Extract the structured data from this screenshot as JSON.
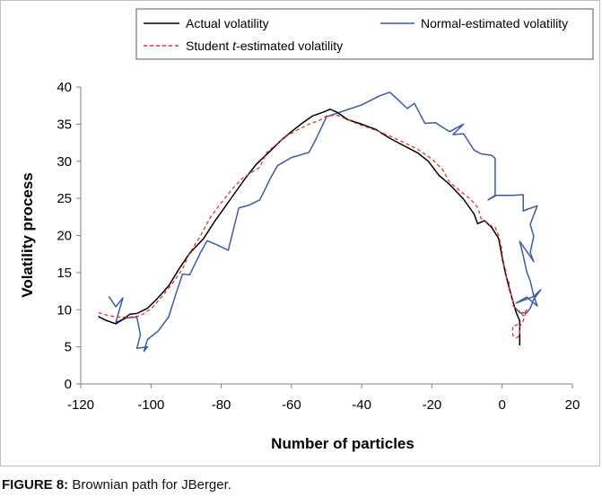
{
  "caption": {
    "label": "FIGURE 8:",
    "text": " Brownian path for JBerger."
  },
  "chart_data": {
    "type": "line",
    "title": "",
    "xlabel": "Number of particles",
    "ylabel": "Volatility process",
    "xlim": [
      -120,
      20
    ],
    "ylim": [
      0,
      40
    ],
    "x_ticks": [
      -120,
      -100,
      -80,
      -60,
      -40,
      -20,
      0,
      20
    ],
    "y_ticks": [
      0,
      5,
      10,
      15,
      20,
      25,
      30,
      35,
      40
    ],
    "grid": false,
    "legend_position": "top",
    "legend": {
      "actual": "Actual volatility",
      "normal": "Normal-estimated volatility",
      "student_pre": "Student ",
      "student_t": "t",
      "student_post": "-estimated volatility"
    },
    "series": [
      {
        "name": "Actual volatility",
        "color": "#000000",
        "style": "solid",
        "points": [
          [
            -115,
            9.1
          ],
          [
            -113,
            8.6
          ],
          [
            -110,
            8.1
          ],
          [
            -108,
            8.7
          ],
          [
            -106,
            9.4
          ],
          [
            -104,
            9.5
          ],
          [
            -101,
            10.2
          ],
          [
            -98,
            11.6
          ],
          [
            -95,
            13.2
          ],
          [
            -92,
            15.5
          ],
          [
            -89,
            17.6
          ],
          [
            -85,
            19.6
          ],
          [
            -82,
            21.8
          ],
          [
            -79,
            23.8
          ],
          [
            -76,
            25.8
          ],
          [
            -73,
            27.8
          ],
          [
            -70,
            29.6
          ],
          [
            -66,
            31.4
          ],
          [
            -63,
            32.8
          ],
          [
            -60,
            34.0
          ],
          [
            -57,
            35.1
          ],
          [
            -54,
            36.1
          ],
          [
            -51,
            36.6
          ],
          [
            -49,
            37.0
          ],
          [
            -47,
            36.6
          ],
          [
            -44,
            35.6
          ],
          [
            -40,
            35.0
          ],
          [
            -36,
            34.3
          ],
          [
            -32,
            33.1
          ],
          [
            -28,
            32.1
          ],
          [
            -24,
            31.1
          ],
          [
            -21,
            30.0
          ],
          [
            -18,
            28.1
          ],
          [
            -15,
            26.9
          ],
          [
            -11,
            24.9
          ],
          [
            -8,
            22.9
          ],
          [
            -7,
            21.6
          ],
          [
            -5,
            22.0
          ],
          [
            -3,
            21.1
          ],
          [
            -1,
            19.6
          ],
          [
            0,
            17.1
          ],
          [
            1,
            14.8
          ],
          [
            2,
            13.0
          ],
          [
            3,
            11.2
          ],
          [
            4,
            9.6
          ],
          [
            5,
            8.5
          ],
          [
            5,
            6.8
          ],
          [
            5,
            5.2
          ]
        ]
      },
      {
        "name": "Normal-estimated volatility",
        "color": "#3b5ba5",
        "style": "solid",
        "points": [
          [
            -112,
            11.8
          ],
          [
            -110,
            10.4
          ],
          [
            -108,
            11.6
          ],
          [
            -110,
            8.3
          ],
          [
            -107,
            8.9
          ],
          [
            -104,
            9.0
          ],
          [
            -103,
            6.6
          ],
          [
            -104,
            4.8
          ],
          [
            -101,
            5.0
          ],
          [
            -102,
            4.4
          ],
          [
            -101,
            6.0
          ],
          [
            -98,
            7.1
          ],
          [
            -95,
            9.0
          ],
          [
            -93,
            12.0
          ],
          [
            -91,
            14.8
          ],
          [
            -89,
            14.7
          ],
          [
            -86,
            17.6
          ],
          [
            -84,
            19.3
          ],
          [
            -81,
            18.7
          ],
          [
            -78,
            18.0
          ],
          [
            -75,
            23.7
          ],
          [
            -72,
            24.1
          ],
          [
            -69,
            24.8
          ],
          [
            -66,
            27.7
          ],
          [
            -64,
            29.4
          ],
          [
            -60,
            30.5
          ],
          [
            -55,
            31.2
          ],
          [
            -53,
            33.0
          ],
          [
            -50,
            36.0
          ],
          [
            -45,
            36.8
          ],
          [
            -40,
            37.6
          ],
          [
            -35,
            38.8
          ],
          [
            -32,
            39.3
          ],
          [
            -29,
            38.0
          ],
          [
            -27,
            37.1
          ],
          [
            -25,
            37.8
          ],
          [
            -22,
            35.1
          ],
          [
            -19,
            35.2
          ],
          [
            -15,
            34.0
          ],
          [
            -11,
            35.0
          ],
          [
            -14,
            33.6
          ],
          [
            -11,
            33.7
          ],
          [
            -8,
            31.5
          ],
          [
            -6,
            31.0
          ],
          [
            -3,
            30.8
          ],
          [
            -2,
            30.4
          ],
          [
            -2,
            27.2
          ],
          [
            -2,
            25.3
          ],
          [
            -4,
            24.8
          ],
          [
            -2,
            25.4
          ],
          [
            1,
            25.4
          ],
          [
            3,
            25.4
          ],
          [
            6,
            25.5
          ],
          [
            6,
            23.3
          ],
          [
            7,
            23.5
          ],
          [
            10,
            24.0
          ],
          [
            8,
            21.5
          ],
          [
            9,
            19.9
          ],
          [
            8,
            17.7
          ],
          [
            9,
            16.5
          ],
          [
            5,
            19.2
          ],
          [
            6,
            17.3
          ],
          [
            7,
            15.1
          ],
          [
            8,
            13.9
          ],
          [
            9,
            11.9
          ],
          [
            10,
            10.5
          ],
          [
            7,
            11.7
          ],
          [
            4,
            10.9
          ],
          [
            9,
            11.8
          ],
          [
            11,
            12.7
          ],
          [
            9,
            11.4
          ],
          [
            8,
            10.2
          ],
          [
            7,
            9.6
          ],
          [
            5,
            9.6
          ],
          [
            3,
            10.6
          ]
        ]
      },
      {
        "name": "Student t-estimated volatility",
        "color": "#e8312f",
        "style": "dashed",
        "points": [
          [
            -115,
            9.6
          ],
          [
            -112,
            9.2
          ],
          [
            -109,
            9.0
          ],
          [
            -106,
            9.0
          ],
          [
            -103,
            9.2
          ],
          [
            -100,
            10.1
          ],
          [
            -97,
            11.7
          ],
          [
            -94,
            13.5
          ],
          [
            -91,
            15.5
          ],
          [
            -89,
            17.6
          ],
          [
            -86,
            19.9
          ],
          [
            -83,
            22.5
          ],
          [
            -80,
            24.4
          ],
          [
            -77,
            26.2
          ],
          [
            -74,
            27.7
          ],
          [
            -71,
            28.6
          ],
          [
            -69,
            29.2
          ],
          [
            -67,
            31.2
          ],
          [
            -64,
            32.4
          ],
          [
            -61,
            33.5
          ],
          [
            -58,
            34.3
          ],
          [
            -55,
            35.0
          ],
          [
            -52,
            35.5
          ],
          [
            -50,
            36.1
          ],
          [
            -47,
            36.2
          ],
          [
            -44,
            35.6
          ],
          [
            -41,
            35.0
          ],
          [
            -38,
            34.5
          ],
          [
            -35,
            34.0
          ],
          [
            -31,
            33.2
          ],
          [
            -27,
            32.3
          ],
          [
            -24,
            31.6
          ],
          [
            -20,
            30.3
          ],
          [
            -17,
            28.9
          ],
          [
            -15,
            27.2
          ],
          [
            -12,
            26.0
          ],
          [
            -9,
            24.9
          ],
          [
            -7,
            23.8
          ],
          [
            -6,
            22.3
          ],
          [
            -4,
            21.5
          ],
          [
            -2,
            21.1
          ],
          [
            -1,
            20.0
          ],
          [
            0,
            18.0
          ],
          [
            0,
            16.4
          ],
          [
            1,
            15.6
          ],
          [
            1,
            14.6
          ],
          [
            2,
            13.6
          ],
          [
            2,
            12.6
          ],
          [
            3,
            11.6
          ],
          [
            3,
            10.7
          ],
          [
            4,
            10.0
          ],
          [
            5,
            9.8
          ],
          [
            6,
            9.2
          ],
          [
            7,
            10.0
          ],
          [
            6,
            8.5
          ],
          [
            5,
            7.7
          ],
          [
            5,
            6.5
          ],
          [
            4,
            6.2
          ],
          [
            3,
            6.6
          ],
          [
            3,
            7.8
          ],
          [
            4,
            7.9
          ],
          [
            5,
            8.3
          ]
        ]
      }
    ]
  }
}
